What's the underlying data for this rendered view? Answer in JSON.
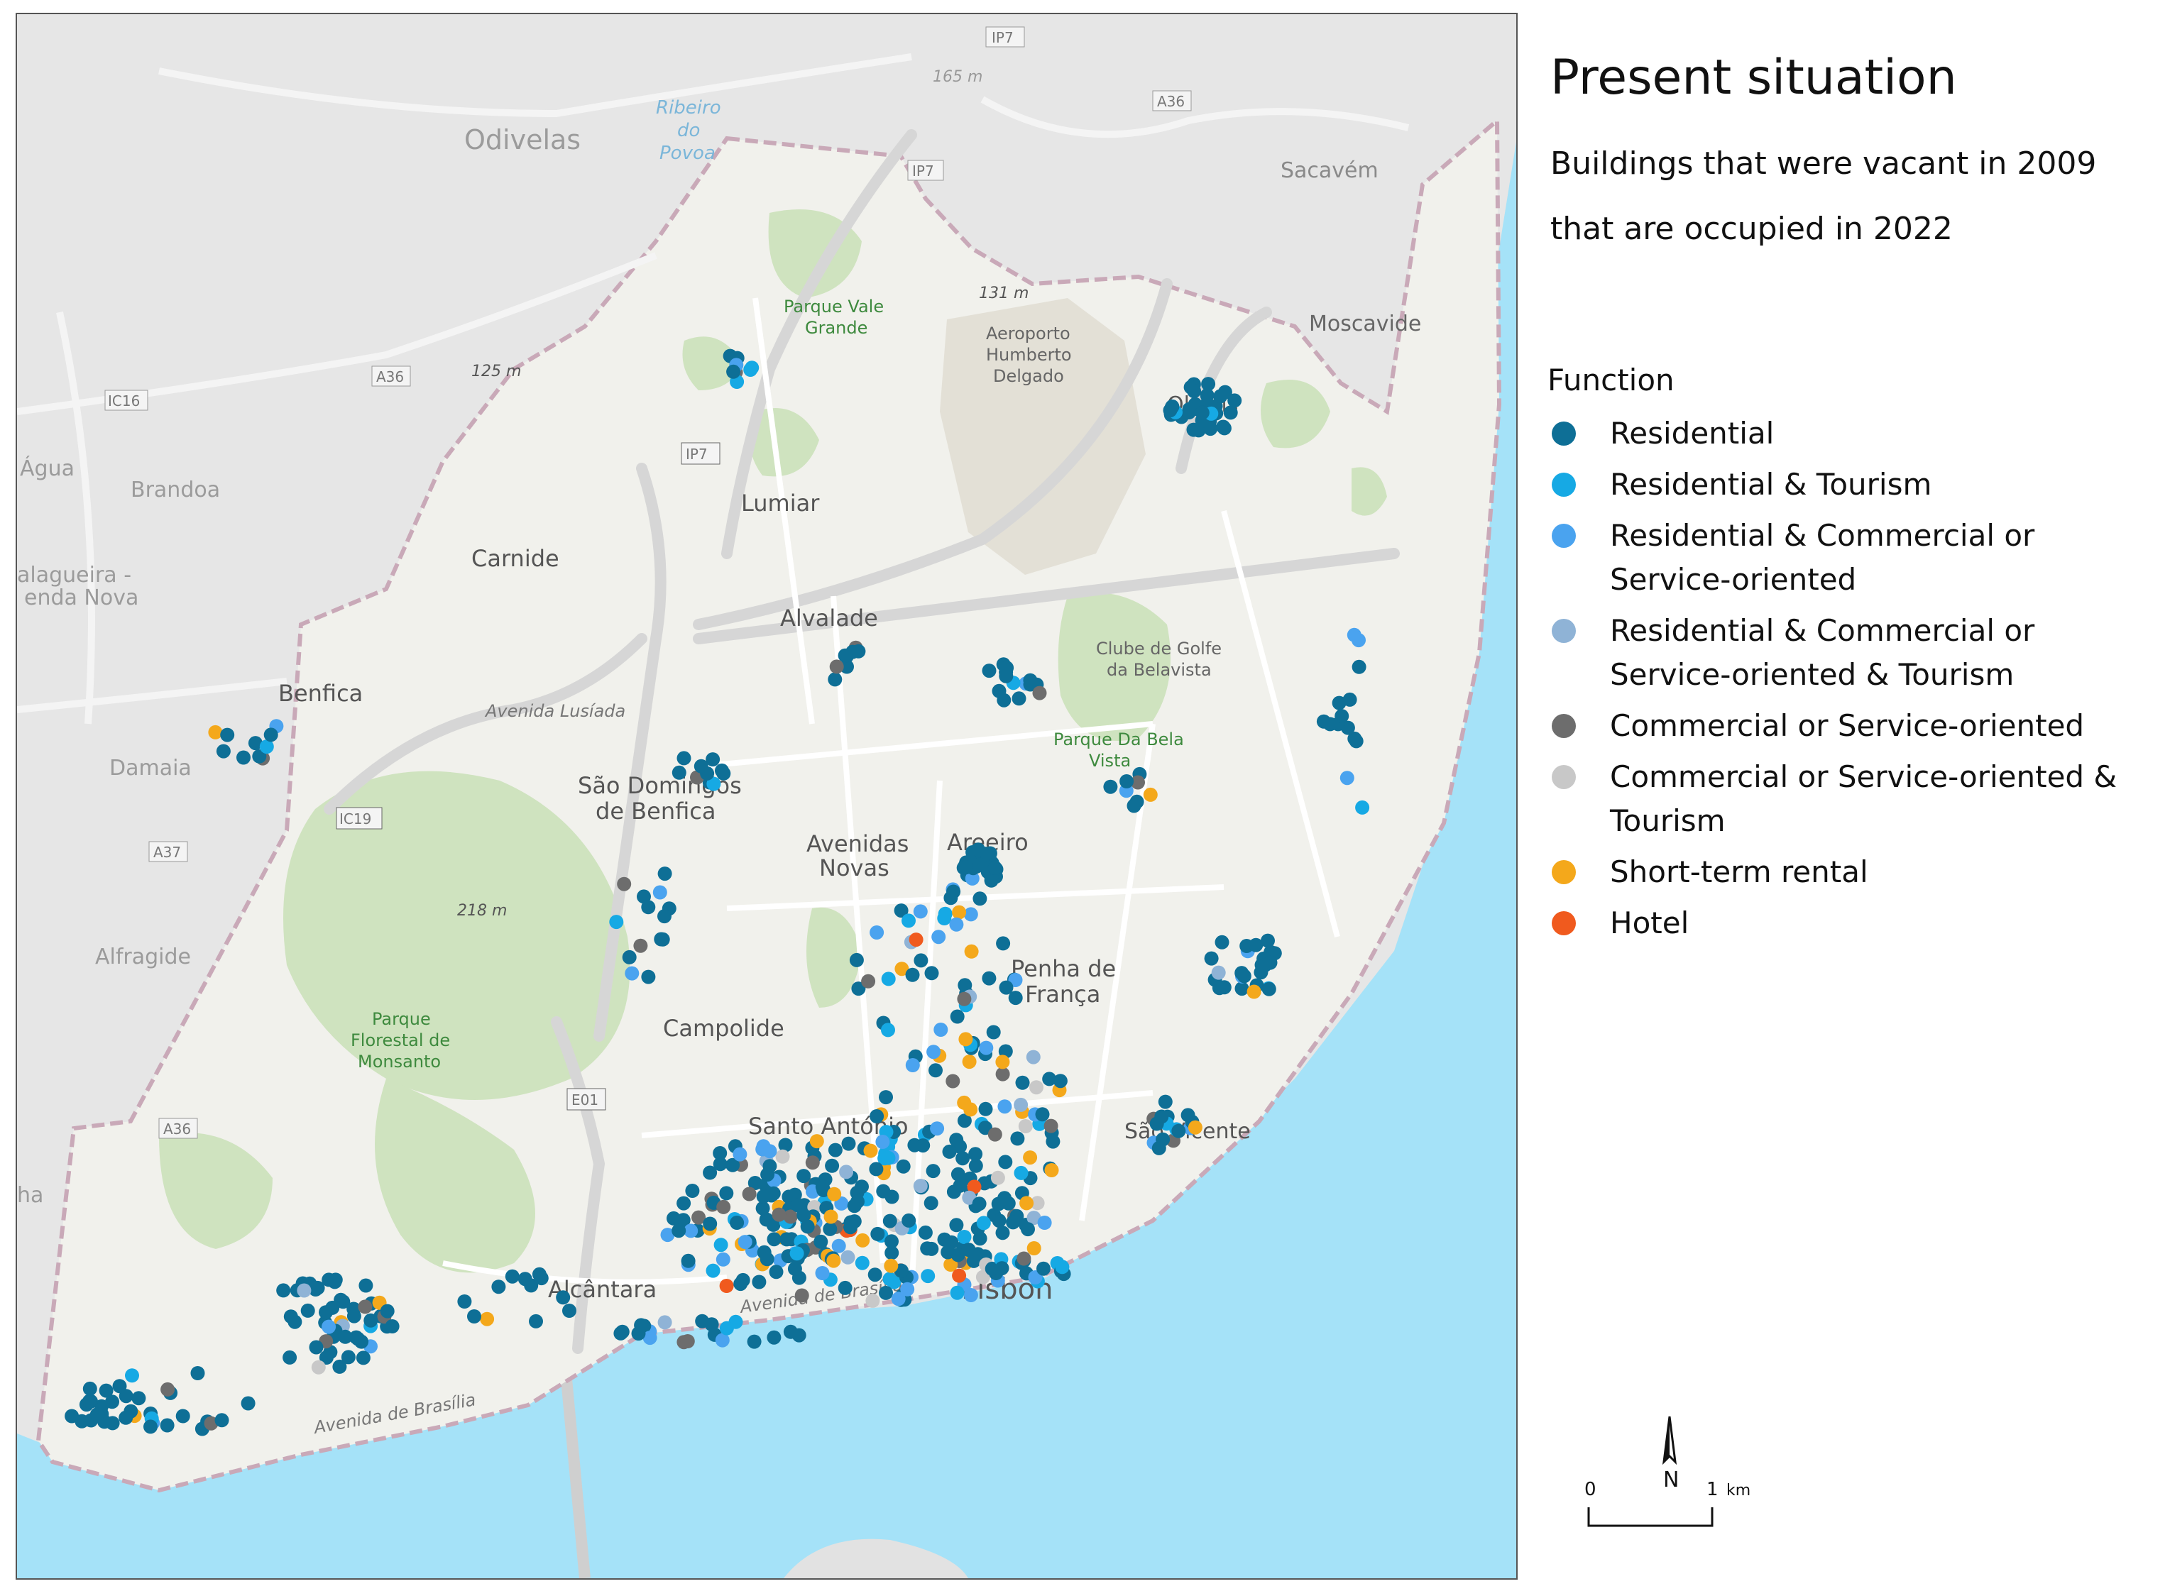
{
  "legend": {
    "title": "Present situation",
    "subtitle_line1": "Buildings that were vacant in 2009",
    "subtitle_line2": "that are occupied in 2022",
    "function_heading": "Function",
    "items": [
      {
        "label": "Residential",
        "color": "#0e6f96"
      },
      {
        "label": "Residential & Tourism",
        "color": "#16a9e4"
      },
      {
        "label": "Residential & Commercial or Service-oriented",
        "color": "#4aa3ef"
      },
      {
        "label": "Residential & Commercial or Service-oriented & Tourism",
        "color": "#8fb3d6"
      },
      {
        "label": "Commercial or Service-oriented",
        "color": "#6d6d6d"
      },
      {
        "label": "Commercial or Service-oriented & Tourism",
        "color": "#c8c8c8"
      },
      {
        "label": "Short-term rental",
        "color": "#f4a81b"
      },
      {
        "label": "Hotel",
        "color": "#f05a1e"
      }
    ]
  },
  "scale": {
    "zero": "0",
    "one": "1",
    "unit": "km",
    "north": "N"
  },
  "map": {
    "colors": {
      "water": "#a5e2f8",
      "land_outside": "#e6e6e6",
      "city": "#f1f1ec",
      "park": "#cfe3bf",
      "road": "#ffffff",
      "highway": "#d9d9d9"
    },
    "place_labels": [
      {
        "id": "odivelas",
        "text": "Odivelas"
      },
      {
        "id": "ribeiro",
        "text": "Ribeiro"
      },
      {
        "id": "do",
        "text": "do"
      },
      {
        "id": "povoa",
        "text": "Povoa"
      },
      {
        "id": "sacavem",
        "text": "Sacavém"
      },
      {
        "id": "moscavide",
        "text": "Moscavide"
      },
      {
        "id": "olivais",
        "text": "Olivais"
      },
      {
        "id": "aeroporto1",
        "text": "Aeroporto"
      },
      {
        "id": "aeroporto2",
        "text": "Humberto"
      },
      {
        "id": "aeroporto3",
        "text": "Delgado"
      },
      {
        "id": "parque-vale1",
        "text": "Parque Vale"
      },
      {
        "id": "parque-vale2",
        "text": "Grande"
      },
      {
        "id": "lumiar",
        "text": "Lumiar"
      },
      {
        "id": "carnide",
        "text": "Carnide"
      },
      {
        "id": "alvalade",
        "text": "Alvalade"
      },
      {
        "id": "golfe1",
        "text": "Clube de Golfe"
      },
      {
        "id": "golfe2",
        "text": "da Belavista"
      },
      {
        "id": "bela-vista1",
        "text": "Parque Da Bela"
      },
      {
        "id": "bela-vista2",
        "text": "Vista"
      },
      {
        "id": "agua",
        "text": "Água"
      },
      {
        "id": "brandoa",
        "text": "Brandoa"
      },
      {
        "id": "falagueira1",
        "text": "alagueira -"
      },
      {
        "id": "falagueira2",
        "text": "enda Nova"
      },
      {
        "id": "benfica",
        "text": "Benfica"
      },
      {
        "id": "lusiada",
        "text": "Avenida Lusíada"
      },
      {
        "id": "damaia",
        "text": "Damaia"
      },
      {
        "id": "sao-domingos1",
        "text": "São Domingos"
      },
      {
        "id": "sao-domingos2",
        "text": "de Benfica"
      },
      {
        "id": "avenidas1",
        "text": "Avenidas"
      },
      {
        "id": "avenidas2",
        "text": "Novas"
      },
      {
        "id": "areeiro",
        "text": "Areeiro"
      },
      {
        "id": "alfragide",
        "text": "Alfragide"
      },
      {
        "id": "penha1",
        "text": "Penha de"
      },
      {
        "id": "penha2",
        "text": "França"
      },
      {
        "id": "campolide",
        "text": "Campolide"
      },
      {
        "id": "monsanto1",
        "text": "Parque"
      },
      {
        "id": "monsanto2",
        "text": "Florestal de"
      },
      {
        "id": "monsanto3",
        "text": "Monsanto"
      },
      {
        "id": "santo-antonio",
        "text": "Santo António"
      },
      {
        "id": "sao-vicente",
        "text": "São Vicente"
      },
      {
        "id": "alcantara",
        "text": "Alcântara"
      },
      {
        "id": "lisbon",
        "text": "Lisbon"
      },
      {
        "id": "av-brasilia1",
        "text": "Avenida de Brasília"
      },
      {
        "id": "av-brasilia2",
        "text": "Avenida de Brasília"
      },
      {
        "id": "elev-165",
        "text": "165 m"
      },
      {
        "id": "elev-131",
        "text": "131 m"
      },
      {
        "id": "elev-125",
        "text": "125 m"
      },
      {
        "id": "elev-218",
        "text": "218 m"
      },
      {
        "id": "ha",
        "text": "ha"
      }
    ],
    "road_shields": [
      {
        "id": "ip7-top",
        "text": "IP7"
      },
      {
        "id": "ip7-top2",
        "text": "IP7"
      },
      {
        "id": "a36-top",
        "text": "A36"
      },
      {
        "id": "a36-left",
        "text": "A36"
      },
      {
        "id": "ic16",
        "text": "IC16"
      },
      {
        "id": "ip7-mid",
        "text": "IP7"
      },
      {
        "id": "ic19",
        "text": "IC19"
      },
      {
        "id": "a37",
        "text": "A37"
      },
      {
        "id": "e01",
        "text": "E01"
      },
      {
        "id": "a36-bottom",
        "text": "A36"
      }
    ]
  }
}
